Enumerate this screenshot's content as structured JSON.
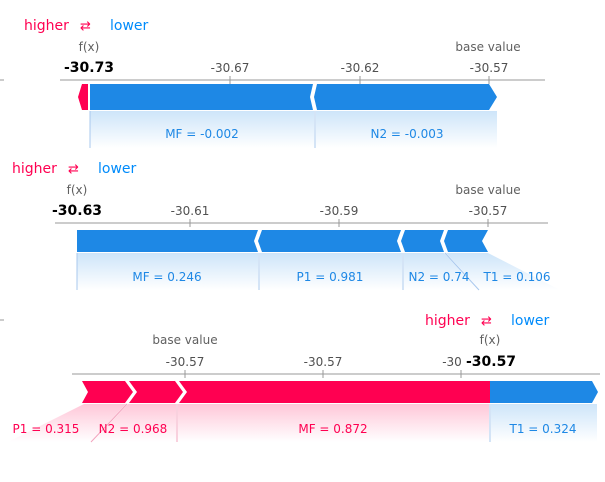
{
  "legend": {
    "higher": "higher",
    "arrows": "⇄",
    "lower": "lower"
  },
  "labels": {
    "fx": "f(x)",
    "base": "base value"
  },
  "colors": {
    "positive": "#ff0051",
    "negative": "#1e88e5",
    "axis": "#999999"
  },
  "chart_data": [
    {
      "type": "force",
      "fx_value": "-30.73",
      "base_value": "-30.57",
      "ticks": [
        "-30.67",
        "-30.62",
        "-30.57"
      ],
      "positive": [],
      "negative": [
        "MF = -0.002",
        "N2 = -0.003"
      ]
    },
    {
      "type": "force",
      "fx_value": "-30.63",
      "base_value": "-30.57",
      "ticks": [
        "-30.61",
        "-30.59",
        "-30.57"
      ],
      "positive": [],
      "negative": [
        "MF = 0.246",
        "P1 = 0.981",
        "N2 = 0.74",
        "T1 = 0.106"
      ]
    },
    {
      "type": "force",
      "fx_value": "-30.57",
      "base_value": "-30.57",
      "ticks": [
        "-30.57",
        "-30.57",
        "-30"
      ],
      "positive": [
        "P1 = 0.315",
        "N2 = 0.968",
        "MF = 0.872"
      ],
      "negative": [
        "T1 = 0.324"
      ]
    }
  ]
}
